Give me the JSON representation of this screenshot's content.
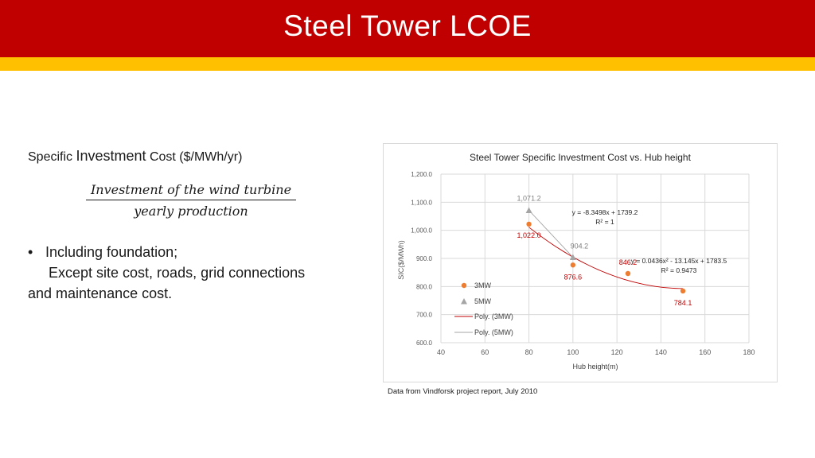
{
  "slide": {
    "title": "Steel Tower LCOE",
    "sic_heading_prefix": "Specific ",
    "sic_heading_word": "Investment",
    "sic_heading_suffix": " Cost ($/MWh/yr)",
    "formula_numerator": "Investment of the wind turbine",
    "formula_denominator": "yearly production",
    "bullet_symbol": "•",
    "bullet_line1": "Including foundation;",
    "bullet_line2": "Except site cost, roads, grid connections",
    "bullet_line3": "and maintenance cost.",
    "source_note": "Data from Vindforsk project report, July 2010"
  },
  "colors": {
    "header_red": "#c00000",
    "header_yellow": "#ffc000",
    "series_3mw": "#ed7d31",
    "series_5mw": "#a5a5a5",
    "trend_3mw": "#c00000",
    "trend_5mw": "#a5a5a5",
    "label_3mw": "#c00000",
    "label_5mw": "#7f7f7f"
  },
  "chart_data": {
    "type": "scatter",
    "title": "Steel Tower Specific Investment Cost vs. Hub height",
    "xlabel": "Hub height(m)",
    "ylabel": "SIC($/MWh)",
    "xlim": [
      40,
      180
    ],
    "ylim": [
      600,
      1200
    ],
    "x_ticks": [
      "40",
      "60",
      "80",
      "100",
      "120",
      "140",
      "160",
      "180"
    ],
    "y_ticks": [
      "600.0",
      "700.0",
      "800.0",
      "900.0",
      "1,000.0",
      "1,100.0",
      "1,200.0"
    ],
    "grid": true,
    "series": [
      {
        "name": "3MW",
        "marker": "circle",
        "x": [
          80,
          100,
          125,
          150
        ],
        "y": [
          1022.0,
          876.6,
          846.2,
          784.1
        ],
        "labels": [
          "1,022.0",
          "876.6",
          "846.2",
          "784.1"
        ]
      },
      {
        "name": "5MW",
        "marker": "triangle",
        "x": [
          80,
          100
        ],
        "y": [
          1071.2,
          904.2
        ],
        "labels": [
          "1,071.2",
          "904.2"
        ]
      }
    ],
    "trendlines": [
      {
        "name": "Poly. (3MW)",
        "type": "polynomial",
        "coefficients": [
          0.0436,
          -13.145,
          1783.5
        ],
        "x_range": [
          80,
          150
        ],
        "equation": "y = 0.0436x² - 13.145x + 1783.5",
        "r2": "R² = 0.9473"
      },
      {
        "name": "Poly. (5MW)",
        "type": "linear",
        "coefficients": [
          -8.3498,
          1739.2
        ],
        "x_range": [
          80,
          100
        ],
        "equation": "y = -8.3498x + 1739.2",
        "r2": "R² = 1"
      }
    ],
    "legend": {
      "position": "left-inside",
      "entries": [
        "3MW",
        "5MW",
        "Poly. (3MW)",
        "Poly. (5MW)"
      ]
    }
  }
}
